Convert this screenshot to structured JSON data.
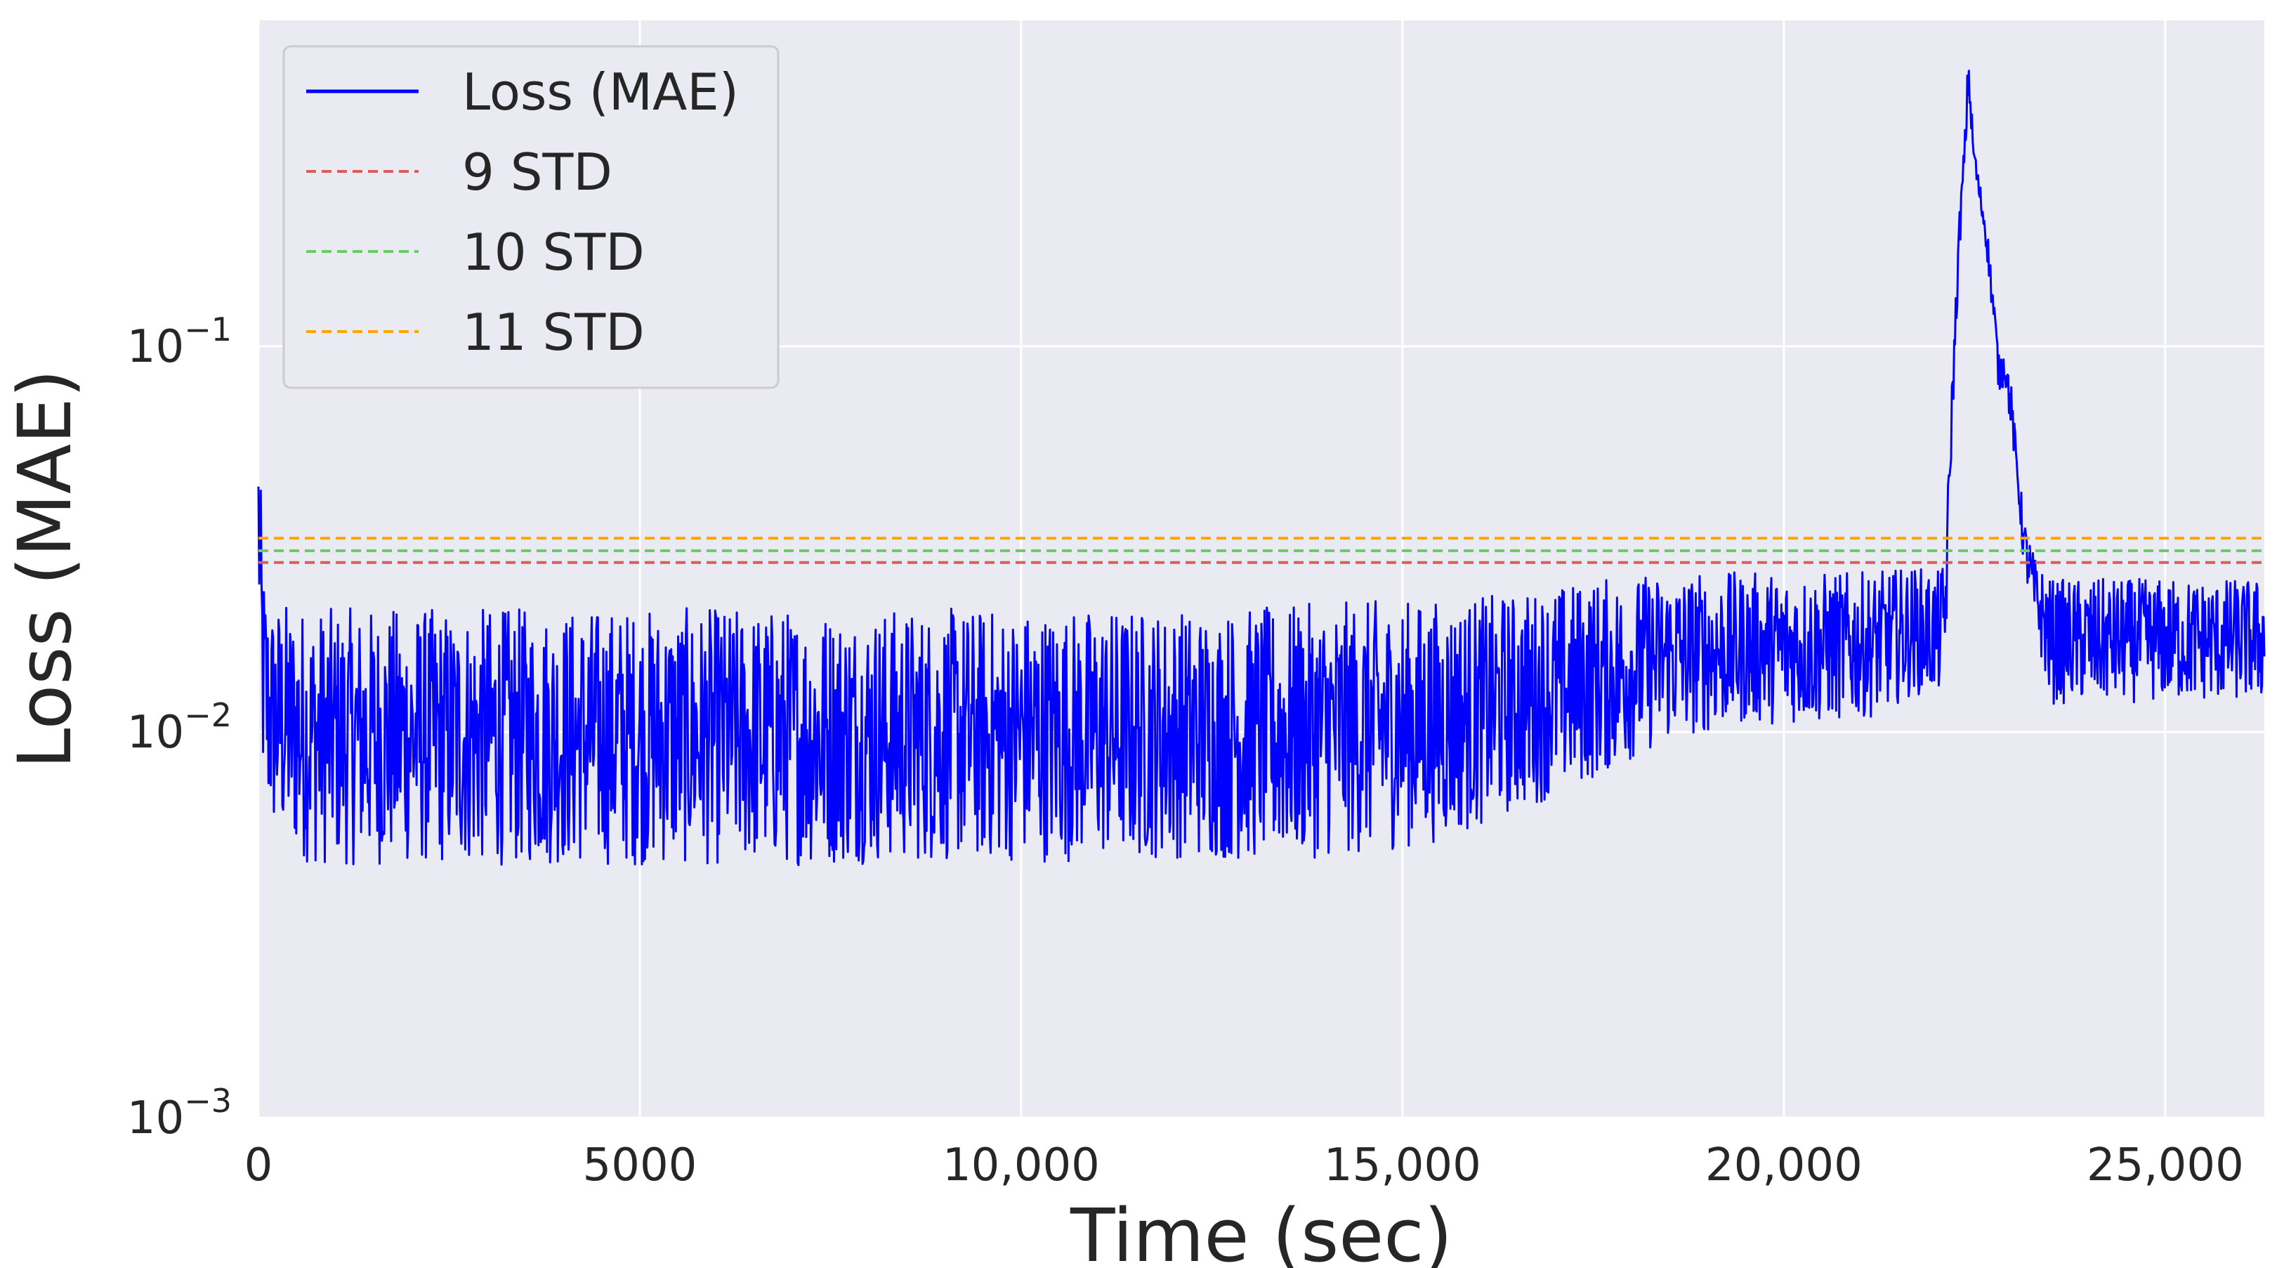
{
  "chart_data": {
    "type": "line",
    "title": "",
    "xlabel": "Time (sec)",
    "ylabel": "Loss (MAE)",
    "xlim": [
      0,
      26300
    ],
    "ylim": [
      0.001,
      0.7
    ],
    "yscale": "log",
    "grid": true,
    "legend_position": "top-left",
    "x_ticks": [
      {
        "value": 0,
        "label": "0"
      },
      {
        "value": 5000,
        "label": "5000"
      },
      {
        "value": 10000,
        "label": "10,000"
      },
      {
        "value": 15000,
        "label": "15,000"
      },
      {
        "value": 20000,
        "label": "20,000"
      },
      {
        "value": 25000,
        "label": "25,000"
      }
    ],
    "y_ticks": [
      {
        "value": 0.001,
        "base": "10",
        "exp": "−3"
      },
      {
        "value": 0.01,
        "base": "10",
        "exp": "−2"
      },
      {
        "value": 0.1,
        "base": "10",
        "exp": "−1"
      }
    ],
    "series": [
      {
        "name": "Loss (MAE)",
        "color": "#0000ff",
        "style": "solid",
        "x": [
          0,
          60,
          140,
          300,
          700,
          1500,
          3000,
          5000,
          7000,
          9000,
          10500,
          12000,
          13000,
          14500,
          15500,
          16500,
          17500,
          18500,
          19500,
          20500,
          21200,
          21700,
          22050,
          22120,
          22200,
          22300,
          22380,
          22420,
          22480,
          22550,
          22650,
          22750,
          22820,
          22900,
          22980,
          23050,
          23150,
          23300,
          23500,
          24000,
          25000,
          26300
        ],
        "center": [
          0.06,
          0.015,
          0.011,
          0.0105,
          0.0095,
          0.0095,
          0.0095,
          0.0095,
          0.0095,
          0.0097,
          0.0098,
          0.0099,
          0.0098,
          0.01,
          0.0108,
          0.012,
          0.014,
          0.016,
          0.0165,
          0.016,
          0.017,
          0.021,
          0.02,
          0.024,
          0.07,
          0.2,
          0.35,
          0.55,
          0.33,
          0.26,
          0.2,
          0.13,
          0.085,
          0.09,
          0.07,
          0.05,
          0.032,
          0.022,
          0.016,
          0.016,
          0.017,
          0.017
        ],
        "upper": [
          0.065,
          0.028,
          0.022,
          0.022,
          0.021,
          0.021,
          0.021,
          0.021,
          0.021,
          0.021,
          0.021,
          0.021,
          0.021,
          0.022,
          0.022,
          0.023,
          0.025,
          0.026,
          0.026,
          0.026,
          0.026,
          0.027,
          0.026,
          0.03,
          0.08,
          0.22,
          0.38,
          0.6,
          0.36,
          0.28,
          0.22,
          0.14,
          0.095,
          0.1,
          0.08,
          0.055,
          0.036,
          0.028,
          0.025,
          0.025,
          0.025,
          0.025
        ],
        "lower": [
          0.02,
          0.007,
          0.0055,
          0.005,
          0.0045,
          0.0045,
          0.0045,
          0.0045,
          0.0045,
          0.0046,
          0.0046,
          0.0047,
          0.0046,
          0.0048,
          0.0052,
          0.0062,
          0.0075,
          0.0095,
          0.0105,
          0.0105,
          0.011,
          0.0125,
          0.0125,
          0.015,
          0.055,
          0.17,
          0.3,
          0.45,
          0.3,
          0.24,
          0.18,
          0.11,
          0.075,
          0.08,
          0.06,
          0.045,
          0.026,
          0.018,
          0.0118,
          0.0118,
          0.012,
          0.012
        ]
      },
      {
        "name": "9 STD",
        "color": "#d65f5f",
        "style": "dashed",
        "y": 0.0275
      },
      {
        "name": "10 STD",
        "color": "#6acc64",
        "style": "dashed",
        "y": 0.0295
      },
      {
        "name": "11 STD",
        "color": "#ffa500",
        "style": "dashed",
        "y": 0.0318
      }
    ]
  }
}
